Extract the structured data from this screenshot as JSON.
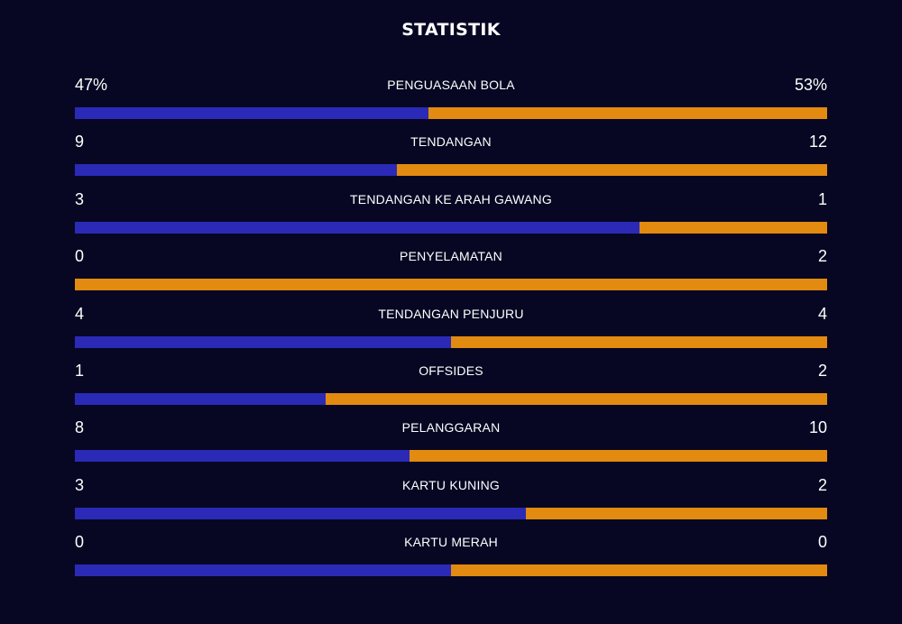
{
  "title": "STATISTIK",
  "colors": {
    "background": "#070723",
    "home": "#2a2ab7",
    "away": "#e38a10",
    "text": "#ffffff"
  },
  "stats": [
    {
      "label": "PENGUASAAN BOLA",
      "home": "47%",
      "away": "53%",
      "home_share": 0.47
    },
    {
      "label": "TENDANGAN",
      "home": "9",
      "away": "12",
      "home_share": 0.4286
    },
    {
      "label": "TENDANGAN KE ARAH GAWANG",
      "home": "3",
      "away": "1",
      "home_share": 0.75
    },
    {
      "label": "PENYELAMATAN",
      "home": "0",
      "away": "2",
      "home_share": 0.0
    },
    {
      "label": "TENDANGAN PENJURU",
      "home": "4",
      "away": "4",
      "home_share": 0.5
    },
    {
      "label": "OFFSIDES",
      "home": "1",
      "away": "2",
      "home_share": 0.3333
    },
    {
      "label": "PELANGGARAN",
      "home": "8",
      "away": "10",
      "home_share": 0.4444
    },
    {
      "label": "KARTU KUNING",
      "home": "3",
      "away": "2",
      "home_share": 0.6
    },
    {
      "label": "KARTU MERAH",
      "home": "0",
      "away": "0",
      "home_share": 0.5
    }
  ]
}
